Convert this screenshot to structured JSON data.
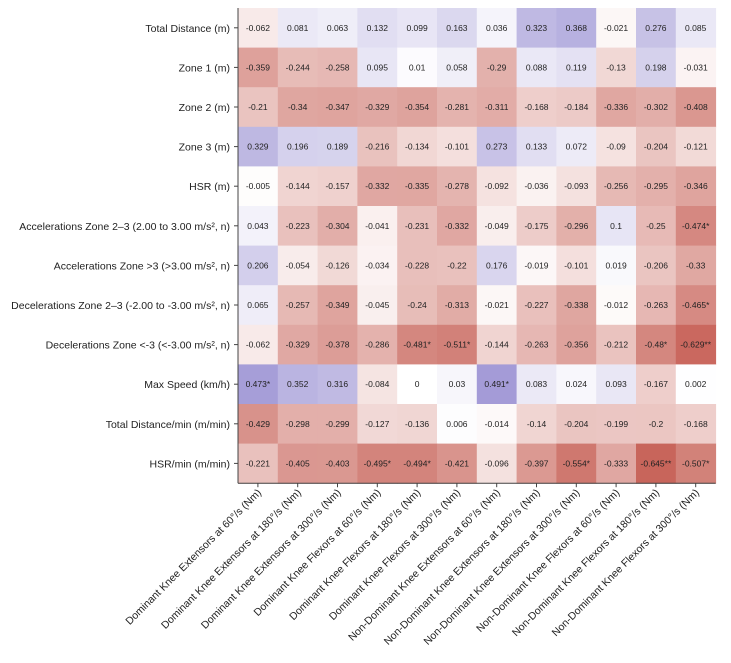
{
  "chart_data": {
    "type": "heatmap",
    "title": "",
    "xlabel": "",
    "ylabel": "",
    "colorscale": {
      "negative": "#c8645a",
      "neutral": "#ffffff",
      "positive": "#8b80cc",
      "range": [
        -0.65,
        0.65
      ]
    },
    "rows": [
      "Total Distance (m)",
      "Zone 1 (m)",
      "Zone 2 (m)",
      "Zone 3 (m)",
      "HSR (m)",
      "Accelerations Zone 2–3 (2.00 to 3.00 m/s², n)",
      "Accelerations Zone >3 (>3.00 m/s², n)",
      "Decelerations Zone 2–3 (-2.00 to -3.00 m/s², n)",
      "Decelerations Zone <-3 (<-3.00 m/s², n)",
      "Max Speed (km/h)",
      "Total Distance/min (m/min)",
      "HSR/min (m/min)"
    ],
    "columns": [
      "Dominant Knee Extensors at 60°/s (Nm)",
      "Dominant Knee Extensors at 180°/s (Nm)",
      "Dominant Knee Extensors at 300°/s (Nm)",
      "Dominant Knee Flexors at 60°/s (Nm)",
      "Dominant Knee Flexors at 180°/s (Nm)",
      "Dominant Knee Flexors at 300°/s (Nm)",
      "Non-Dominant Knee Extensors at 60°/s (Nm)",
      "Non-Dominant Knee Extensors at 180°/s (Nm)",
      "Non-Dominant Knee Extensors at 300°/s (Nm)",
      "Non-Dominant Knee Flexors at 60°/s (Nm)",
      "Non-Dominant Knee Flexors at 180°/s (Nm)",
      "Non-Dominant Knee Flexors at 300°/s (Nm)"
    ],
    "labels": [
      [
        "-0.062",
        "0.081",
        "0.063",
        "0.132",
        "0.099",
        "0.163",
        "0.036",
        "0.323",
        "0.368",
        "-0.021",
        "0.276",
        "0.085"
      ],
      [
        "-0.359",
        "-0.244",
        "-0.258",
        "0.095",
        "0.01",
        "0.058",
        "-0.29",
        "0.088",
        "0.119",
        "-0.13",
        "0.198",
        "-0.031"
      ],
      [
        "-0.21",
        "-0.34",
        "-0.347",
        "-0.329",
        "-0.354",
        "-0.281",
        "-0.311",
        "-0.168",
        "-0.184",
        "-0.336",
        "-0.302",
        "-0.408"
      ],
      [
        "0.329",
        "0.196",
        "0.189",
        "-0.216",
        "-0.134",
        "-0.101",
        "0.273",
        "0.133",
        "0.072",
        "-0.09",
        "-0.204",
        "-0.121"
      ],
      [
        "-0.005",
        "-0.144",
        "-0.157",
        "-0.332",
        "-0.335",
        "-0.278",
        "-0.092",
        "-0.036",
        "-0.093",
        "-0.256",
        "-0.295",
        "-0.346"
      ],
      [
        "0.043",
        "-0.223",
        "-0.304",
        "-0.041",
        "-0.231",
        "-0.332",
        "-0.049",
        "-0.175",
        "-0.296",
        "0.1",
        "-0.25",
        "-0.474*"
      ],
      [
        "0.206",
        "-0.054",
        "-0.126",
        "-0.034",
        "-0.228",
        "-0.22",
        "0.176",
        "-0.019",
        "-0.101",
        "0.019",
        "-0.206",
        "-0.33"
      ],
      [
        "0.065",
        "-0.257",
        "-0.349",
        "-0.045",
        "-0.24",
        "-0.313",
        "-0.021",
        "-0.227",
        "-0.338",
        "-0.012",
        "-0.263",
        "-0.465*"
      ],
      [
        "-0.062",
        "-0.329",
        "-0.378",
        "-0.286",
        "-0.481*",
        "-0.511*",
        "-0.144",
        "-0.263",
        "-0.356",
        "-0.212",
        "-0.48*",
        "-0.629**"
      ],
      [
        "0.473*",
        "0.352",
        "0.316",
        "-0.084",
        "0",
        "0.03",
        "0.491*",
        "0.083",
        "0.024",
        "0.093",
        "-0.167",
        "0.002"
      ],
      [
        "-0.429",
        "-0.298",
        "-0.299",
        "-0.127",
        "-0.136",
        "0.006",
        "-0.014",
        "-0.14",
        "-0.204",
        "-0.199",
        "-0.2",
        "-0.168"
      ],
      [
        "-0.221",
        "-0.405",
        "-0.403",
        "-0.495*",
        "-0.494*",
        "-0.421",
        "-0.096",
        "-0.397",
        "-0.554*",
        "-0.333",
        "-0.645**",
        "-0.507*"
      ]
    ]
  }
}
